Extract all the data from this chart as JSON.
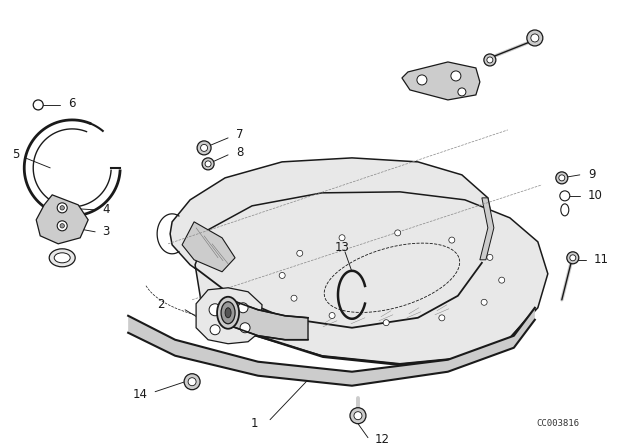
{
  "bg_color": "#ffffff",
  "line_color": "#1a1a1a",
  "fill_light": "#e8e8e8",
  "fill_mid": "#cccccc",
  "fill_dark": "#999999",
  "catalog_number": "CC003816",
  "figsize": [
    6.4,
    4.48
  ],
  "dpi": 100
}
